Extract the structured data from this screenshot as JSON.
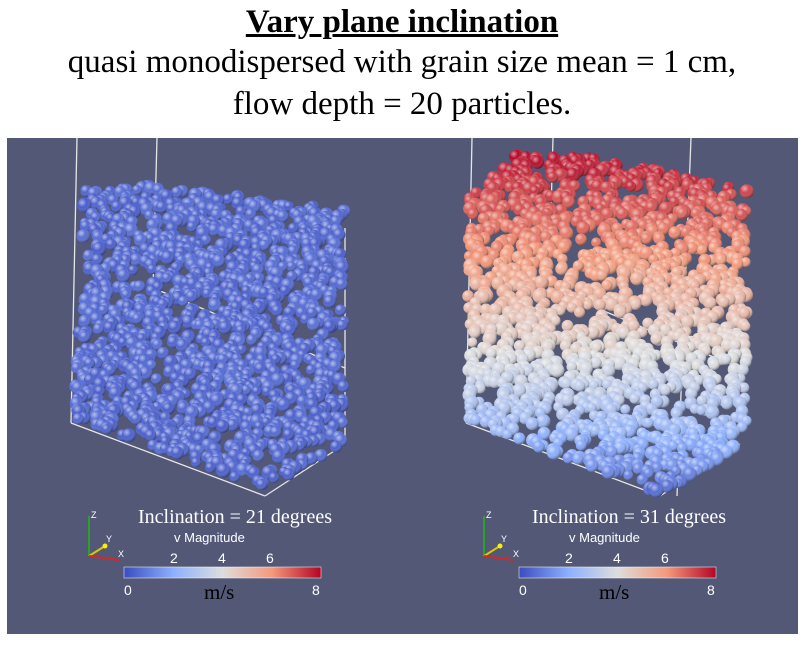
{
  "header": {
    "title": "Vary plane inclination",
    "line2": "quasi  monodispersed with grain size mean = 1 cm,",
    "line3": "flow depth = 20 particles."
  },
  "panels": [
    {
      "inclination_label": "Inclination = 21 degrees",
      "colorbar_title": "v Magnitude",
      "ticks": [
        "0",
        "2",
        "4",
        "6",
        "8"
      ],
      "unit": "m/s",
      "axes": {
        "z": "Z",
        "y": "Y",
        "x": "X"
      }
    },
    {
      "inclination_label": "Inclination = 31 degrees",
      "colorbar_title": "v Magnitude",
      "ticks": [
        "0",
        "2",
        "4",
        "6",
        "8"
      ],
      "unit": "m/s",
      "axes": {
        "z": "Z",
        "y": "Y",
        "x": "X"
      }
    }
  ],
  "colors": {
    "background": "#535877",
    "low": "#3b4cc0",
    "mid": "#dddddd",
    "high": "#b40426"
  }
}
